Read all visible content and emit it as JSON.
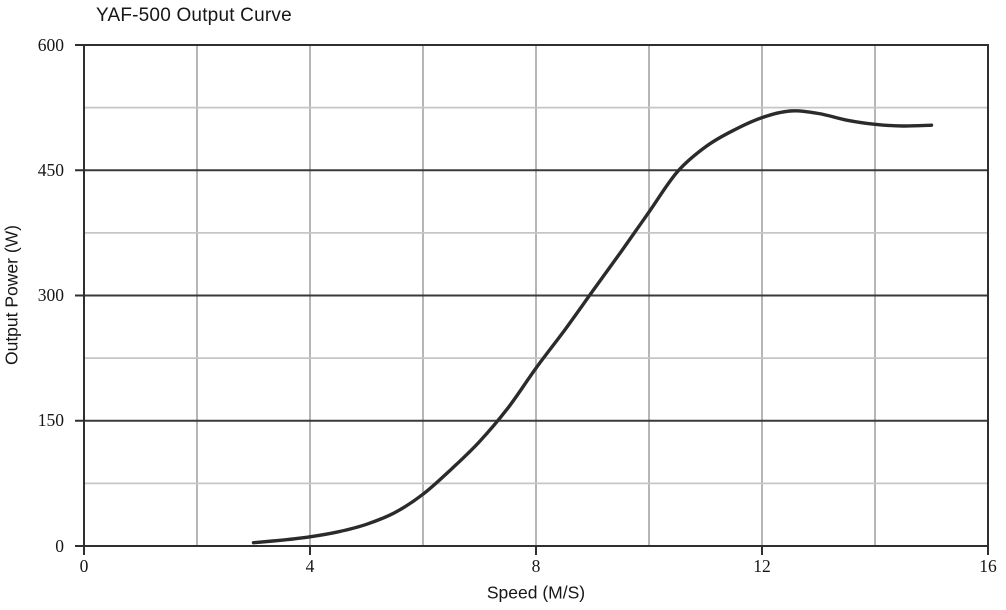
{
  "chart_data": {
    "type": "line",
    "title": "YAF-500 Output Curve",
    "xlabel": "Speed (M/S)",
    "ylabel": "Output Power (W)",
    "xlim": [
      0,
      16
    ],
    "ylim": [
      0,
      600
    ],
    "x_major_ticks": [
      0,
      4,
      8,
      12,
      16
    ],
    "x_gridline_step": 2,
    "y_major_ticks": [
      0,
      150,
      300,
      450,
      600
    ],
    "y_minor_ticks": [
      75,
      225,
      375,
      525
    ],
    "grid": true,
    "legend": "none",
    "series": [
      {
        "name": "Output Power",
        "x": [
          3,
          3.5,
          4,
          4.5,
          5,
          5.5,
          6,
          6.5,
          7,
          7.5,
          8,
          8.5,
          9,
          9.5,
          10,
          10.5,
          11,
          11.5,
          12,
          12.5,
          13,
          13.5,
          14,
          14.5,
          15
        ],
        "y": [
          4,
          7,
          11,
          17,
          26,
          40,
          62,
          92,
          125,
          165,
          213,
          258,
          305,
          352,
          400,
          448,
          478,
          498,
          513,
          521,
          518,
          510,
          505,
          503,
          504
        ]
      }
    ],
    "colors": {
      "curve": "#2b2b2b",
      "axis_border": "#2f2f2f",
      "major_gridline": "#3a3a3a",
      "minor_gridline": "#c6c6c6",
      "vertical_gridline": "#a9a9a9",
      "text": "#161616",
      "background": "#ffffff"
    }
  }
}
